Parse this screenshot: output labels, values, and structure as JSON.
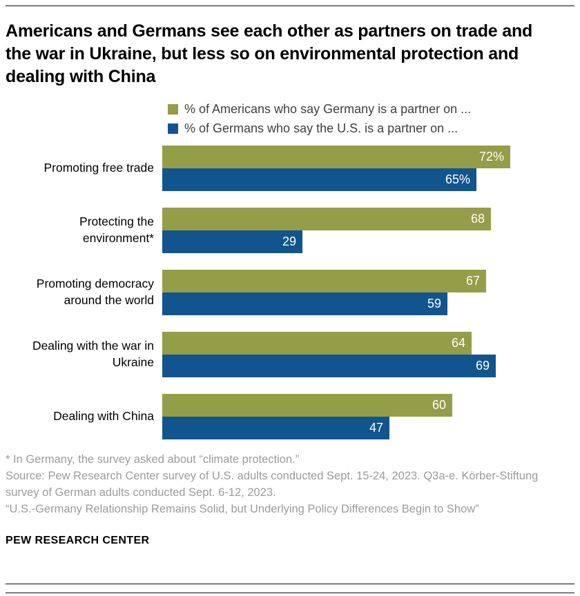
{
  "header": {
    "title": "Americans and Germans see each other as partners on trade and the war in Ukraine, but less so on environmental protection and dealing with China"
  },
  "chart_data": {
    "type": "bar",
    "orientation": "horizontal",
    "title": "Americans and Germans see each other as partners on trade and the war in Ukraine, but less so on environmental protection and dealing with China",
    "categories": [
      "Promoting free trade",
      "Protecting the environment*",
      "Promoting democracy around the world",
      "Dealing with the war in Ukraine",
      "Dealing with China"
    ],
    "series": [
      {
        "name": "% of Americans who say Germany is a partner on ...",
        "color": "#949d48",
        "values": [
          72,
          68,
          67,
          64,
          60
        ],
        "value_labels": [
          "72%",
          "68",
          "67",
          "64",
          "60"
        ]
      },
      {
        "name": "% of Germans who say the U.S. is a partner on ...",
        "color": "#12558e",
        "values": [
          65,
          29,
          59,
          69,
          47
        ],
        "value_labels": [
          "65%",
          "29",
          "59",
          "69",
          "47"
        ]
      }
    ],
    "xlim": [
      0,
      100
    ],
    "grid": false,
    "legend_position": "top",
    "value_label_color": "#ffffff"
  },
  "footnotes": {
    "note1": "* In Germany, the survey asked about “climate protection.”",
    "source": "Source: Pew Research Center survey of U.S. adults conducted Sept. 15-24, 2023. Q3a-e. Körber-Stiftung survey of German adults conducted Sept. 6-12, 2023.",
    "report": "“U.S.-Germany Relationship Remains Solid, but Underlying Policy Differences Begin to Show”"
  },
  "branding": {
    "label": "PEW RESEARCH CENTER"
  }
}
